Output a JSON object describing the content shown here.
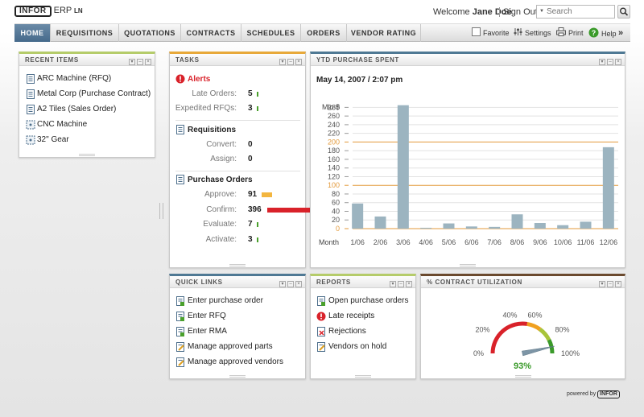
{
  "app": {
    "logo_text": "INFOR",
    "product": "ERP",
    "product_suffix": "LN"
  },
  "header": {
    "welcome_prefix": "Welcome",
    "user_name": "Jane Doe",
    "sign_out": "Sign Out",
    "search_placeholder": "Search"
  },
  "nav": {
    "tabs": [
      "HOME",
      "REQUISITIONS",
      "QUOTATIONS",
      "CONTRACTS",
      "SCHEDULES",
      "ORDERS",
      "VENDOR RATING"
    ],
    "active": "HOME",
    "tools": {
      "favorite": "Favorite",
      "settings": "Settings",
      "print": "Print",
      "help": "Help"
    }
  },
  "recent_items": {
    "title": "RECENT ITEMS",
    "items": [
      {
        "label": "ARC Machine (RFQ)",
        "icon": "document-icon"
      },
      {
        "label": "Metal Corp (Purchase Contract)",
        "icon": "document-icon"
      },
      {
        "label": "A2 Tiles (Sales Order)",
        "icon": "document-icon"
      },
      {
        "label": "CNC Machine",
        "icon": "item-icon"
      },
      {
        "label": "32\" Gear",
        "icon": "item-icon"
      }
    ]
  },
  "tasks": {
    "title": "TASKS",
    "alerts": {
      "label": "Alerts",
      "rows": [
        {
          "label": "Late Orders:",
          "value": "5",
          "bar_fraction": 0.01,
          "bar_color": "#4aa02c"
        },
        {
          "label": "Expedited RFQs:",
          "value": "3",
          "bar_fraction": 0.01,
          "bar_color": "#4aa02c"
        }
      ]
    },
    "requisitions": {
      "label": "Requisitions",
      "rows": [
        {
          "label": "Convert:",
          "value": "0"
        },
        {
          "label": "Assign:",
          "value": "0"
        }
      ]
    },
    "purchase_orders": {
      "label": "Purchase Orders",
      "rows": [
        {
          "label": "Approve:",
          "value": "91",
          "bar_fraction": 0.23,
          "bar_color": "#f3b640"
        },
        {
          "label": "Confirm:",
          "value": "396",
          "bar_fraction": 1.0,
          "bar_color": "#d9222a"
        },
        {
          "label": "Evaluate:",
          "value": "7",
          "bar_fraction": 0.02,
          "bar_color": "#4aa02c"
        },
        {
          "label": "Activate:",
          "value": "3",
          "bar_fraction": 0.01,
          "bar_color": "#4aa02c"
        }
      ]
    }
  },
  "ytd": {
    "title": "YTD PURCHASE SPENT",
    "date": "May 14, 2007 / 2:07 pm"
  },
  "chart_data": {
    "type": "bar",
    "ylabel": "Mio $",
    "xlabel": "Month",
    "categories": [
      "1/06",
      "2/06",
      "3/06",
      "4/06",
      "5/06",
      "6/06",
      "7/06",
      "8/06",
      "9/06",
      "10/06",
      "11/06",
      "12/06"
    ],
    "values": [
      58,
      28,
      285,
      2,
      12,
      5,
      4,
      33,
      13,
      8,
      16,
      188
    ],
    "yticks": [
      0,
      20,
      40,
      60,
      80,
      100,
      120,
      140,
      160,
      180,
      200,
      220,
      240,
      260,
      280
    ],
    "ylim": [
      0,
      290
    ],
    "highlight_ticks": [
      0,
      100,
      200
    ],
    "bar_color": "#9cb4c0",
    "highlight_color": "#e39a3b"
  },
  "quick_links": {
    "title": "QUICK LINKS",
    "items": [
      {
        "label": "Enter purchase order",
        "icon": "new-document-icon"
      },
      {
        "label": "Enter RFQ",
        "icon": "new-document-icon"
      },
      {
        "label": "Enter RMA",
        "icon": "new-document-icon"
      },
      {
        "label": "Manage approved parts",
        "icon": "edit-document-icon"
      },
      {
        "label": "Manage approved vendors",
        "icon": "edit-document-icon"
      }
    ]
  },
  "reports": {
    "title": "REPORTS",
    "items": [
      {
        "label": "Open purchase orders",
        "icon": "new-document-icon"
      },
      {
        "label": "Late receipts",
        "icon": "alert-icon"
      },
      {
        "label": "Rejections",
        "icon": "rejection-icon"
      },
      {
        "label": "Vendors on hold",
        "icon": "edit-document-icon"
      }
    ]
  },
  "contract_util": {
    "title": "% CONTRACT UTILIZATION",
    "value": 0.93,
    "value_label": "93%",
    "scale_labels": [
      "0%",
      "20%",
      "40%",
      "60%",
      "80%",
      "100%"
    ]
  },
  "footer": {
    "powered_by": "powered by",
    "brand": "INFOR"
  },
  "colors": {
    "nav_active": "#55779a",
    "alert_red": "#d9222a",
    "gauge_green": "#3a9a2a"
  }
}
